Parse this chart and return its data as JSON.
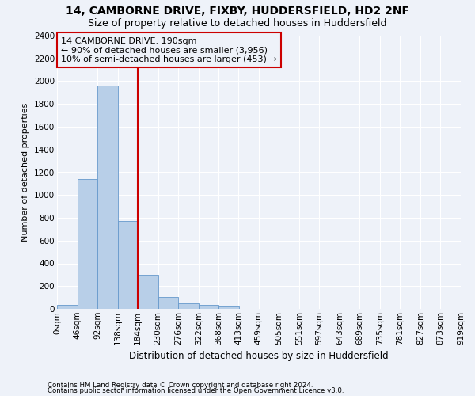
{
  "title_line1": "14, CAMBORNE DRIVE, FIXBY, HUDDERSFIELD, HD2 2NF",
  "title_line2": "Size of property relative to detached houses in Huddersfield",
  "xlabel": "Distribution of detached houses by size in Huddersfield",
  "ylabel": "Number of detached properties",
  "footnote1": "Contains HM Land Registry data © Crown copyright and database right 2024.",
  "footnote2": "Contains public sector information licensed under the Open Government Licence v3.0.",
  "bin_edges": [
    0,
    46,
    92,
    138,
    184,
    230,
    276,
    322,
    368,
    413,
    459,
    505,
    551,
    597,
    643,
    689,
    735,
    781,
    827,
    873,
    919
  ],
  "bin_labels": [
    "0sqm",
    "46sqm",
    "92sqm",
    "138sqm",
    "184sqm",
    "230sqm",
    "276sqm",
    "322sqm",
    "368sqm",
    "413sqm",
    "459sqm",
    "505sqm",
    "551sqm",
    "597sqm",
    "643sqm",
    "689sqm",
    "735sqm",
    "781sqm",
    "827sqm",
    "873sqm",
    "919sqm"
  ],
  "bar_heights": [
    35,
    1140,
    1960,
    775,
    300,
    105,
    47,
    38,
    25,
    0,
    0,
    0,
    0,
    0,
    0,
    0,
    0,
    0,
    0,
    0
  ],
  "bar_color": "#b8cfe8",
  "bar_edgecolor": "#6699cc",
  "ylim": [
    0,
    2400
  ],
  "yticks": [
    0,
    200,
    400,
    600,
    800,
    1000,
    1200,
    1400,
    1600,
    1800,
    2000,
    2200,
    2400
  ],
  "vline_x": 184,
  "vline_color": "#cc0000",
  "annotation_line1": "14 CAMBORNE DRIVE: 190sqm",
  "annotation_line2": "← 90% of detached houses are smaller (3,956)",
  "annotation_line3": "10% of semi-detached houses are larger (453) →",
  "annotation_box_edgecolor": "#cc0000",
  "background_color": "#eef2f9",
  "grid_color": "#ffffff",
  "title1_fontsize": 10,
  "title2_fontsize": 9,
  "ylabel_fontsize": 8,
  "xlabel_fontsize": 8.5,
  "tick_fontsize": 7.5,
  "annot_fontsize": 8
}
